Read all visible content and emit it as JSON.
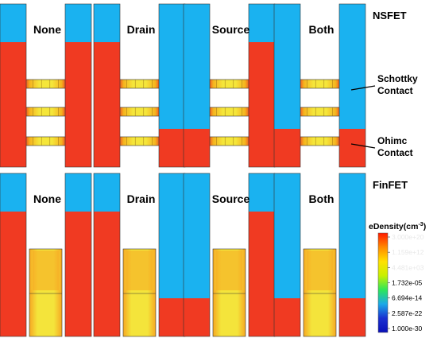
{
  "rows": [
    {
      "id": "nsfet",
      "label": "NSFET",
      "structure": "nanosheet",
      "panels": [
        {
          "id": "none",
          "label": "None",
          "schottky": "none"
        },
        {
          "id": "drain",
          "label": "Drain",
          "schottky": "drain"
        },
        {
          "id": "source",
          "label": "Source",
          "schottky": "source"
        },
        {
          "id": "both",
          "label": "Both",
          "schottky": "both"
        }
      ]
    },
    {
      "id": "finfet",
      "label": "FinFET",
      "structure": "fin",
      "panels": [
        {
          "id": "none",
          "label": "None",
          "schottky": "none"
        },
        {
          "id": "drain",
          "label": "Drain",
          "schottky": "drain"
        },
        {
          "id": "source",
          "label": "Source",
          "schottky": "source"
        },
        {
          "id": "both",
          "label": "Both",
          "schottky": "both"
        }
      ]
    }
  ],
  "annotations": [
    {
      "id": "schottky",
      "lines": [
        "Schottky",
        "Contact"
      ]
    },
    {
      "id": "ohmic",
      "lines": [
        "Ohimc",
        "Contact"
      ]
    }
  ],
  "colorbar": {
    "title": "eDensity(cm",
    "title_sup": "-3",
    "title_close": ")",
    "ticks": [
      "3.000e+20",
      "1.159e+12",
      "4.481e+03",
      "1.732e-05",
      "6.694e-14",
      "2.587e-22",
      "1.000e-30"
    ],
    "tick_colors": [
      "#e8e8e8",
      "#e8e8e8",
      "#e8e8e8",
      "#000000",
      "#000000",
      "#000000",
      "#000000"
    ],
    "gradient": [
      "#ff1a00",
      "#ff8a00",
      "#ffe000",
      "#c8f000",
      "#2ee65a",
      "#1aa8e8",
      "#1a30d0",
      "#0a10b8"
    ]
  },
  "colors": {
    "ohmic_red": "#f03a22",
    "schottky_blue": "#1ab2f0",
    "channel_orange": "#f5b21e",
    "channel_yellow": "#f5e63a",
    "fin_orange": "#f6a823",
    "fin_yellow": "#f4e43b",
    "outline": "#333333"
  }
}
